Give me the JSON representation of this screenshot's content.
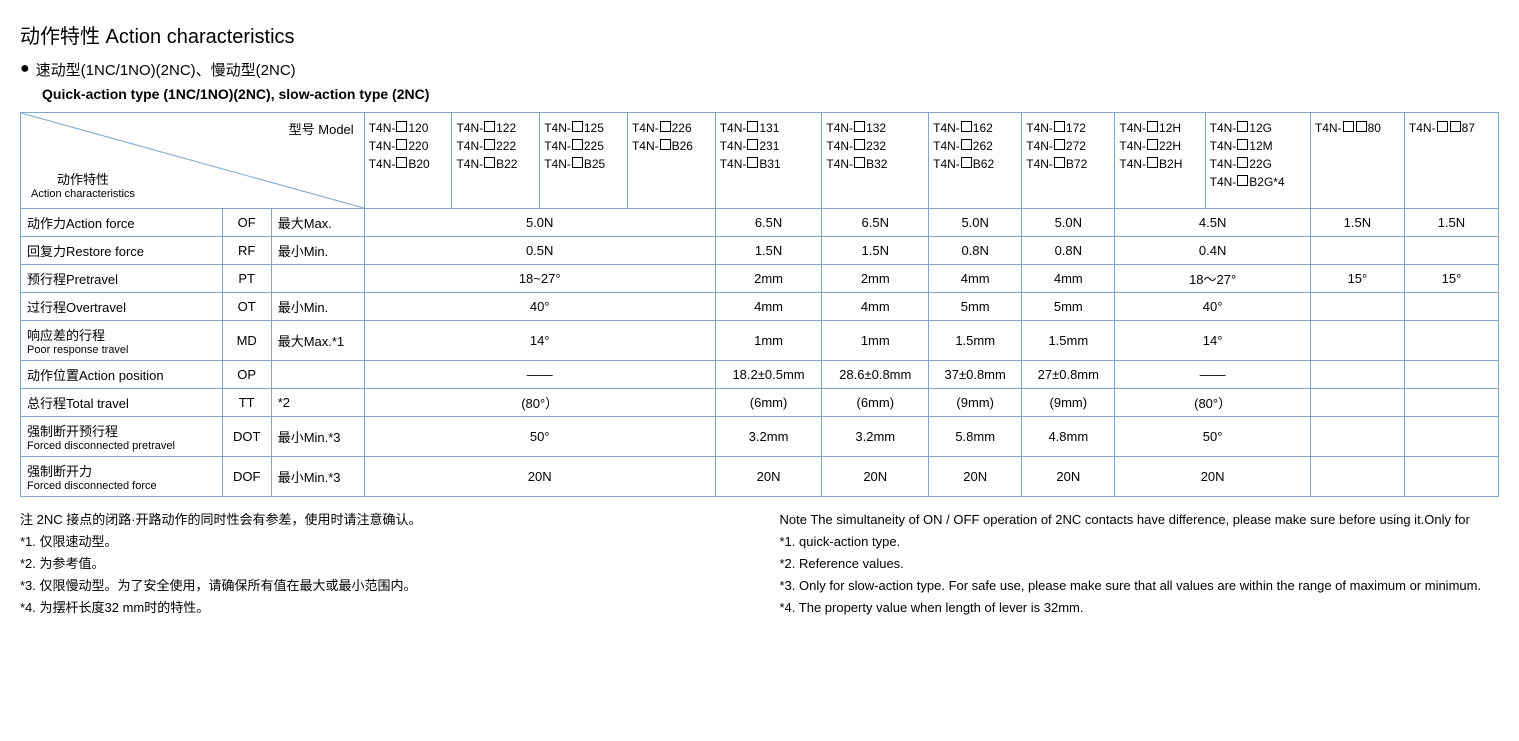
{
  "title": "动作特性 Action characteristics",
  "subtitle_cn": "速动型(1NC/1NO)(2NC)、慢动型(2NC)",
  "subtitle_en": "Quick-action type (1NC/1NO)(2NC), slow-action type (2NC)",
  "diag_top": "型号 Model",
  "diag_bottom_cn": "动作特性",
  "diag_bottom_en": "Action characteristics",
  "model_cols": [
    [
      "T4N-□120",
      "T4N-□220",
      "T4N-□B20"
    ],
    [
      "T4N-□122",
      "T4N-□222",
      "T4N-□B22"
    ],
    [
      "T4N-□125",
      "T4N-□225",
      "T4N-□B25"
    ],
    [
      "T4N-□226",
      "T4N-□B26"
    ],
    [
      "T4N-□131",
      "T4N-□231",
      "T4N-□B31"
    ],
    [
      "T4N-□132",
      "T4N-□232",
      "T4N-□B32"
    ],
    [
      "T4N-□162",
      "T4N-□262",
      "T4N-□B62"
    ],
    [
      "T4N-□172",
      "T4N-□272",
      "T4N-□B72"
    ],
    [
      "T4N-□12H",
      "T4N-□22H",
      "T4N-□B2H"
    ],
    [
      "T4N-□12G",
      "T4N-□12M",
      "T4N-□22G",
      "T4N-□B2G*4"
    ],
    [
      "T4N-□□80"
    ],
    [
      "T4N-□□87"
    ]
  ],
  "rows": [
    {
      "label_cn": "动作力",
      "label_en": "Action force",
      "sym": "OF",
      "cond": "最大Max.",
      "span1": "5.0N",
      "v5": "6.5N",
      "v6": "6.5N",
      "v7": "5.0N",
      "v8": "5.0N",
      "span2": "4.5N",
      "v11": "1.5N",
      "v12": "1.5N"
    },
    {
      "label_cn": "回复力",
      "label_en": "Restore force",
      "sym": "RF",
      "cond": "最小Min.",
      "span1": "0.5N",
      "v5": "1.5N",
      "v6": "1.5N",
      "v7": "0.8N",
      "v8": "0.8N",
      "span2": "0.4N",
      "v11": "",
      "v12": ""
    },
    {
      "label_cn": "预行程",
      "label_en": "Pretravel",
      "sym": "PT",
      "cond": "",
      "span1": "18~27°",
      "v5": "2mm",
      "v6": "2mm",
      "v7": "4mm",
      "v8": "4mm",
      "span2": "18～27°",
      "v11": "15°",
      "v12": "15°"
    },
    {
      "label_cn": "过行程",
      "label_en": "Overtravel",
      "sym": "OT",
      "cond": "最小Min.",
      "span1": "40°",
      "v5": "4mm",
      "v6": "4mm",
      "v7": "5mm",
      "v8": "5mm",
      "span2": "40°",
      "v11": "",
      "v12": ""
    },
    {
      "label_cn": "响应差的行程",
      "label_en": "Poor response travel",
      "sym": "MD",
      "cond": "最大Max.*1",
      "span1": "14°",
      "v5": "1mm",
      "v6": "1mm",
      "v7": "1.5mm",
      "v8": "1.5mm",
      "span2": "14°",
      "v11": "",
      "v12": ""
    },
    {
      "label_cn": "动作位置",
      "label_en": "Action position",
      "sym": "OP",
      "cond": "",
      "span1": "——",
      "v5": "18.2±0.5mm",
      "v6": "28.6±0.8mm",
      "v7": "37±0.8mm",
      "v8": "27±0.8mm",
      "span2": "——",
      "v11": "",
      "v12": ""
    },
    {
      "label_cn": "总行程",
      "label_en": "Total travel",
      "sym": "TT",
      "cond": "*2",
      "span1": "(80°）",
      "v5": "(6mm)",
      "v6": "(6mm)",
      "v7": "(9mm)",
      "v8": "(9mm)",
      "span2": "(80°）",
      "v11": "",
      "v12": ""
    },
    {
      "label_cn": "强制断开预行程",
      "label_en": "Forced disconnected pretravel",
      "sym": "DOT",
      "cond": "最小Min.*3",
      "span1": "50°",
      "v5": "3.2mm",
      "v6": "3.2mm",
      "v7": "5.8mm",
      "v8": "4.8mm",
      "span2": "50°",
      "v11": "",
      "v12": ""
    },
    {
      "label_cn": "强制断开力",
      "label_en": "Forced disconnected force",
      "sym": "DOF",
      "cond": "最小Min.*3",
      "span1": "20N",
      "v5": "20N",
      "v6": "20N",
      "v7": "20N",
      "v8": "20N",
      "span2": "20N",
      "v11": "",
      "v12": ""
    }
  ],
  "notes_cn": [
    "注 2NC 接点的闭路·开路动作的同时性会有参差，使用时请注意确认。",
    "*1. 仅限速动型。",
    "*2. 为参考值。",
    "*3. 仅限慢动型。为了安全使用，请确保所有值在最大或最小范围内。",
    "*4. 为摆杆长度32 mm时的特性。"
  ],
  "notes_en": [
    "Note The simultaneity of ON / OFF operation of 2NC contacts have difference, please make sure before using it.Only for",
    "*1. quick-action type.",
    "*2. Reference values.",
    "*3. Only for slow-action type. For safe use, please make sure that all values are within the range of maximum or minimum.",
    "*4. The property value when length of lever is 32mm."
  ],
  "style": {
    "border_color": "#7fa8c9",
    "background": "#ffffff",
    "text_color": "#000000",
    "title_fontsize": 20,
    "body_fontsize": 13
  }
}
